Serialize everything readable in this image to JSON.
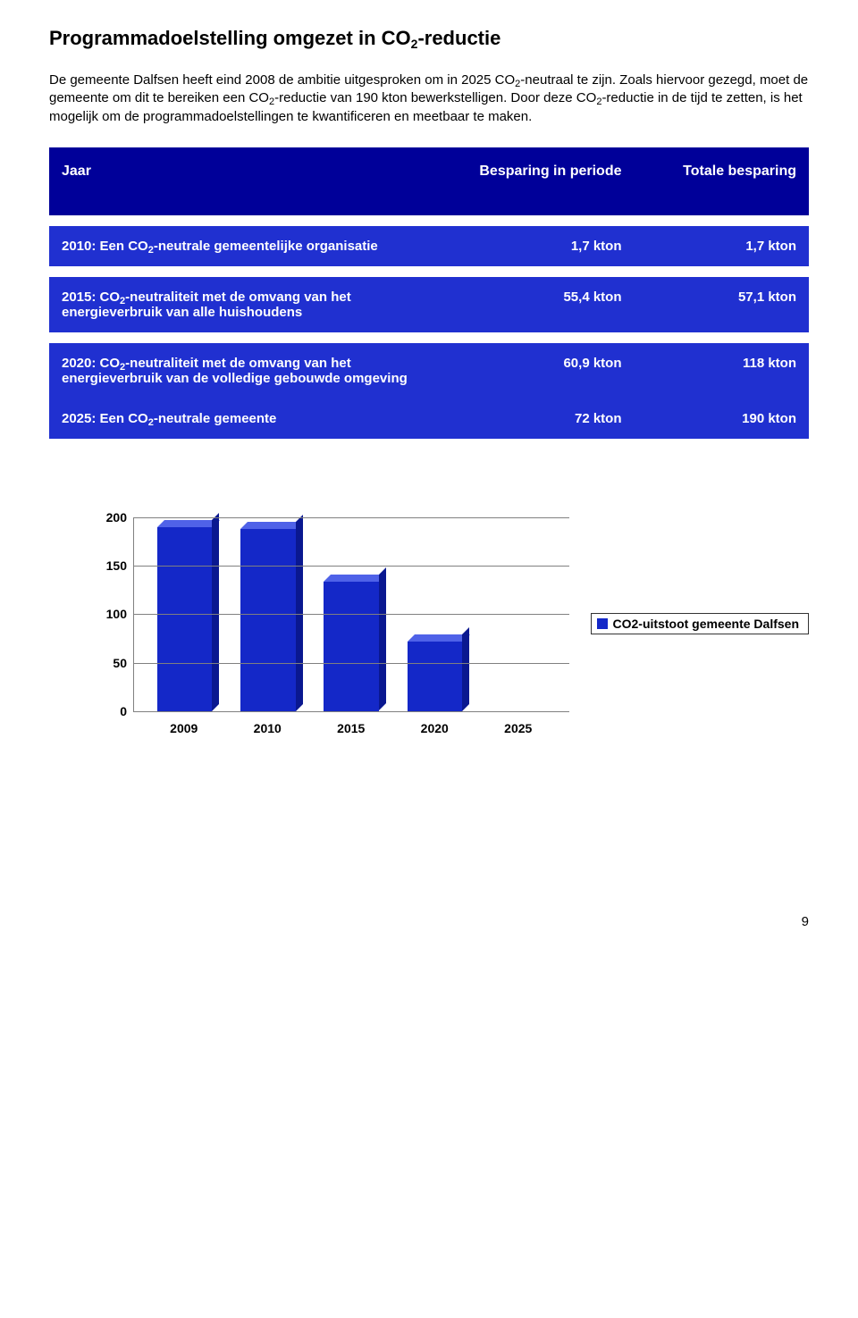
{
  "title_html": "Programmadoelstelling omgezet in CO<sub>2</sub>-reductie",
  "paragraph_html": "De gemeente Dalfsen heeft eind 2008 de ambitie uitgesproken om in 2025 CO<sub>2</sub>-neutraal te zijn. Zoals hiervoor gezegd, moet de gemeente om dit te bereiken een CO<sub>2</sub>-reductie van 190 kton bewerkstelligen. Door deze CO<sub>2</sub>-reductie in de tijd te zetten, is het mogelijk om de programmadoelstellingen te kwantificeren en meetbaar te maken.",
  "table": {
    "header_bg": "#000099",
    "row_bg": "#2030d0",
    "divider_bg": "#ffffff",
    "headers": [
      "Jaar",
      "Besparing in periode",
      "Totale besparing"
    ],
    "rows": [
      {
        "label_html": "2010: Een CO<sub>2</sub>-neutrale gemeentelijke organisatie",
        "period": "1,7 kton",
        "total": "1,7 kton"
      },
      {
        "label_html": "2015: CO<sub>2</sub>-neutraliteit met de omvang van het energieverbruik van alle huishoudens",
        "period": "55,4 kton",
        "total": "57,1 kton"
      },
      {
        "label_html": "2020: CO<sub>2</sub>-neutraliteit met de omvang van het energieverbruik van de volledige gebouwde omgeving",
        "period": "60,9 kton",
        "total": "118 kton"
      },
      {
        "label_html": "2025: Een CO<sub>2</sub>-neutrale gemeente",
        "period": "72 kton",
        "total": "190 kton"
      }
    ],
    "row_groups": [
      [
        0
      ],
      [
        1
      ],
      [
        2,
        3
      ]
    ]
  },
  "chart": {
    "type": "bar3d",
    "categories": [
      "2009",
      "2010",
      "2015",
      "2020",
      "2025"
    ],
    "values": [
      190,
      188,
      133,
      72,
      0
    ],
    "ymax": 200,
    "yticks": [
      0,
      50,
      100,
      150,
      200
    ],
    "bar_front": "#1428c8",
    "bar_top": "#4f62e8",
    "bar_side": "#0a1890",
    "grid_color": "#808080",
    "background": "#ffffff",
    "legend_label": "CO2-uitstoot gemeente Dalfsen",
    "legend_swatch": "#1428c8",
    "tick_fontsize": 14
  },
  "page_number": "9"
}
